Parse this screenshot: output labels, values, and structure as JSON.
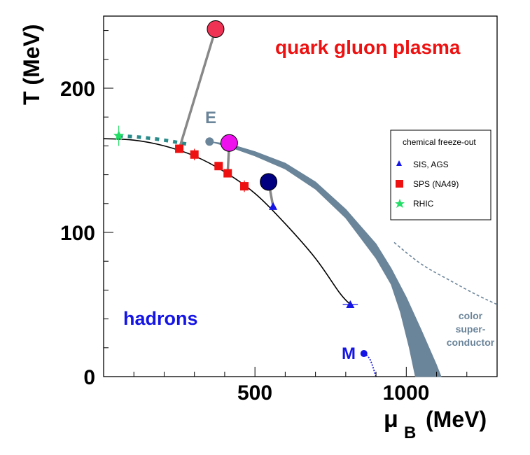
{
  "chart_data": {
    "type": "scatter",
    "title": "",
    "xlabel": "μ",
    "xlabel_sub": "B",
    "xlabel_unit": "(MeV)",
    "ylabel": "T (MeV)",
    "xlim": [
      0,
      1300
    ],
    "ylim": [
      0,
      250
    ],
    "x_ticks": [
      500,
      1000
    ],
    "y_ticks": [
      0,
      100,
      200
    ],
    "x_tick_labels": [
      "500",
      "1000"
    ],
    "y_tick_labels": [
      "0",
      "100",
      "200"
    ],
    "regions": {
      "qgp": "quark gluon plasma",
      "hadrons": "hadrons",
      "csc_line1": "color",
      "csc_line2": "super-",
      "csc_line3": "conductor"
    },
    "point_labels": {
      "E": "E",
      "M": "M"
    },
    "legend": {
      "title": "chemical freeze-out",
      "position": "right",
      "entries": [
        "SIS, AGS",
        "SPS (NA49)",
        "RHIC"
      ]
    },
    "series": [
      {
        "name": "SIS, AGS",
        "marker": "triangle",
        "color": "#1414e6",
        "points": [
          {
            "x": 560,
            "y": 118,
            "xerr": 8
          },
          {
            "x": 815,
            "y": 50,
            "xerr": 25
          }
        ]
      },
      {
        "name": "SPS (NA49)",
        "marker": "square",
        "color": "#ee1111",
        "points": [
          {
            "x": 250,
            "y": 158
          },
          {
            "x": 300,
            "y": 154,
            "yerr": 4
          },
          {
            "x": 380,
            "y": 146
          },
          {
            "x": 410,
            "y": 141
          },
          {
            "x": 465,
            "y": 132,
            "yerr": 4
          }
        ]
      },
      {
        "name": "RHIC",
        "marker": "star",
        "color": "#22dd66",
        "points": [
          {
            "x": 50,
            "y": 167,
            "yerr": 7
          }
        ]
      }
    ],
    "freezeout_curve": [
      [
        0,
        165
      ],
      [
        100,
        164
      ],
      [
        200,
        160
      ],
      [
        300,
        153
      ],
      [
        400,
        142
      ],
      [
        500,
        127
      ],
      [
        600,
        106
      ],
      [
        700,
        82
      ],
      [
        780,
        58
      ],
      [
        815,
        50
      ]
    ],
    "dotted_boundary": [
      [
        50,
        167
      ],
      [
        120,
        166
      ],
      [
        200,
        164
      ],
      [
        280,
        161
      ]
    ],
    "critical_point_E": {
      "x": 350,
      "y": 163
    },
    "critical_point_M": {
      "x": 860,
      "y": 16
    },
    "crossover_band_upper": [
      [
        350,
        163
      ],
      [
        420,
        161
      ],
      [
        500,
        156
      ],
      [
        600,
        148
      ],
      [
        700,
        135
      ],
      [
        800,
        116
      ],
      [
        900,
        92
      ],
      [
        950,
        75
      ],
      [
        1000,
        55
      ],
      [
        1050,
        32
      ],
      [
        1100,
        8
      ],
      [
        1115,
        0
      ]
    ],
    "crossover_band_lower": [
      [
        350,
        163
      ],
      [
        420,
        159
      ],
      [
        500,
        153
      ],
      [
        600,
        144
      ],
      [
        700,
        130
      ],
      [
        800,
        110
      ],
      [
        900,
        82
      ],
      [
        950,
        64
      ],
      [
        980,
        45
      ],
      [
        1010,
        20
      ],
      [
        1030,
        0
      ]
    ],
    "csc_dashed": [
      [
        960,
        93
      ],
      [
        1050,
        78
      ],
      [
        1150,
        66
      ],
      [
        1230,
        57
      ],
      [
        1300,
        50
      ]
    ],
    "M_dotted": [
      [
        860,
        16
      ],
      [
        880,
        12
      ],
      [
        900,
        0
      ]
    ],
    "model_points": [
      {
        "x": 370,
        "y": 241,
        "color": "#ee3355",
        "link": {
          "x": 250,
          "y": 158
        }
      },
      {
        "x": 415,
        "y": 162,
        "color": "#ee11ee",
        "link": {
          "x": 410,
          "y": 141
        }
      },
      {
        "x": 545,
        "y": 135,
        "color": "#000080",
        "link": {
          "x": 560,
          "y": 118
        }
      }
    ]
  }
}
